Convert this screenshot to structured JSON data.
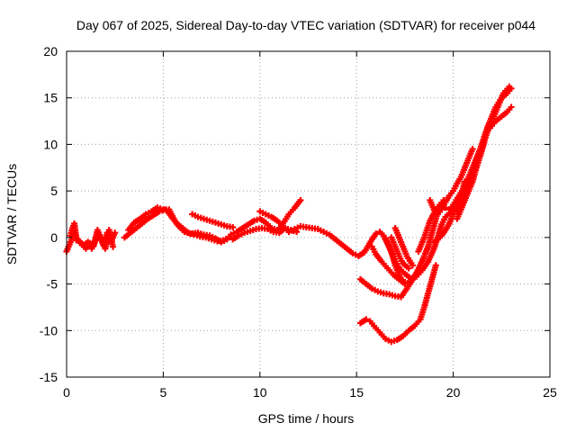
{
  "chart_data": {
    "type": "scatter",
    "title": "Day 067 of 2025, Sidereal Day-to-day VTEC variation (SDTVAR) for receiver p044",
    "xlabel": "GPS time / hours",
    "ylabel": "SDTVAR / TECUs",
    "xlim": [
      0,
      25
    ],
    "ylim": [
      -15,
      20
    ],
    "x_ticks": [
      0,
      5,
      10,
      15,
      20,
      25
    ],
    "y_ticks": [
      -15,
      -10,
      -5,
      0,
      5,
      10,
      15,
      20
    ],
    "grid": true,
    "marker": "plus",
    "color": "#ff0000",
    "series": [
      {
        "points": [
          [
            0,
            -1.5
          ],
          [
            0.2,
            -0.5
          ],
          [
            0.4,
            0.5
          ],
          [
            0.5,
            -0.3
          ],
          [
            0.7,
            -0.5
          ],
          [
            0.9,
            -0.8
          ],
          [
            1.1,
            -0.5
          ],
          [
            1.3,
            -1.2
          ],
          [
            1.5,
            -0.3
          ],
          [
            1.7,
            0.2
          ],
          [
            1.9,
            -0.8
          ],
          [
            2.1,
            0.5
          ],
          [
            2.3,
            -0.5
          ],
          [
            2.5,
            0.5
          ]
        ]
      },
      {
        "points": [
          [
            0.2,
            0.2
          ],
          [
            0.3,
            1.0
          ],
          [
            0.4,
            1.5
          ],
          [
            0.5,
            0.0
          ],
          [
            0.8,
            -0.8
          ],
          [
            1.0,
            -1.2
          ],
          [
            1.2,
            -0.6
          ],
          [
            1.4,
            -0.9
          ],
          [
            1.6,
            0.8
          ],
          [
            1.8,
            -0.2
          ],
          [
            2.0,
            -1.2
          ],
          [
            2.2,
            0.8
          ],
          [
            2.4,
            -1.0
          ]
        ]
      },
      {
        "points": [
          [
            3.0,
            0.0
          ],
          [
            3.3,
            0.5
          ],
          [
            3.6,
            1.0
          ],
          [
            3.9,
            1.5
          ],
          [
            4.2,
            2.0
          ],
          [
            4.5,
            2.4
          ],
          [
            4.8,
            2.8
          ],
          [
            5.1,
            3.0
          ],
          [
            5.3,
            2.6
          ],
          [
            5.5,
            2.0
          ],
          [
            5.7,
            1.5
          ],
          [
            6.0,
            1.0
          ],
          [
            6.3,
            0.5
          ],
          [
            6.6,
            0.3
          ],
          [
            6.9,
            0.1
          ],
          [
            7.2,
            0.0
          ],
          [
            7.5,
            -0.2
          ],
          [
            7.8,
            -0.4
          ],
          [
            8.1,
            -0.3
          ],
          [
            8.4,
            0.0
          ]
        ]
      },
      {
        "points": [
          [
            3.2,
            0.8
          ],
          [
            3.5,
            1.6
          ],
          [
            3.8,
            2.0
          ],
          [
            4.1,
            2.5
          ],
          [
            4.4,
            2.8
          ],
          [
            4.7,
            3.2
          ],
          [
            5.0,
            3.0
          ],
          [
            5.3,
            3.0
          ],
          [
            5.6,
            1.8
          ],
          [
            5.8,
            1.2
          ],
          [
            6.1,
            0.6
          ],
          [
            6.4,
            0.4
          ],
          [
            6.8,
            0.5
          ],
          [
            7.1,
            0.3
          ],
          [
            7.4,
            0.2
          ],
          [
            7.7,
            -0.1
          ],
          [
            8.0,
            -0.5
          ],
          [
            8.3,
            -0.2
          ]
        ]
      },
      {
        "points": [
          [
            6.5,
            2.5
          ],
          [
            6.8,
            2.2
          ],
          [
            7.1,
            2.0
          ],
          [
            7.4,
            1.8
          ],
          [
            7.7,
            1.6
          ],
          [
            8.0,
            1.4
          ],
          [
            8.3,
            1.2
          ],
          [
            8.6,
            1.1
          ]
        ]
      },
      {
        "points": [
          [
            8.5,
            0.3
          ],
          [
            8.8,
            0.6
          ],
          [
            9.1,
            1.0
          ],
          [
            9.4,
            1.4
          ],
          [
            9.7,
            1.8
          ],
          [
            10.0,
            2.0
          ],
          [
            10.3,
            1.6
          ],
          [
            10.6,
            1.0
          ],
          [
            10.9,
            0.8
          ],
          [
            11.2,
            1.5
          ],
          [
            11.5,
            2.5
          ],
          [
            11.8,
            3.2
          ],
          [
            12.1,
            4.0
          ]
        ]
      },
      {
        "points": [
          [
            8.6,
            -0.2
          ],
          [
            8.9,
            0.2
          ],
          [
            9.2,
            0.5
          ],
          [
            9.5,
            0.7
          ],
          [
            9.8,
            0.9
          ],
          [
            10.1,
            1.0
          ],
          [
            10.4,
            0.9
          ],
          [
            10.7,
            0.6
          ],
          [
            11.0,
            0.5
          ],
          [
            11.3,
            1.0
          ],
          [
            11.6,
            0.8
          ],
          [
            11.9,
            0.6
          ]
        ]
      },
      {
        "points": [
          [
            10.0,
            2.8
          ],
          [
            10.3,
            2.5
          ],
          [
            10.6,
            2.2
          ],
          [
            10.9,
            1.8
          ],
          [
            11.2,
            1.2
          ],
          [
            11.5,
            0.6
          ],
          [
            11.8,
            0.9
          ],
          [
            12.1,
            1.2
          ],
          [
            12.4,
            1.1
          ],
          [
            12.7,
            1.0
          ],
          [
            13.0,
            0.9
          ],
          [
            13.3,
            0.6
          ],
          [
            13.6,
            0.3
          ],
          [
            13.9,
            -0.2
          ],
          [
            14.2,
            -0.7
          ],
          [
            14.5,
            -1.2
          ],
          [
            14.8,
            -1.7
          ],
          [
            15.1,
            -2.0
          ],
          [
            15.4,
            -1.6
          ],
          [
            15.6,
            -0.9
          ],
          [
            15.8,
            -0.2
          ],
          [
            16.0,
            0.4
          ],
          [
            16.2,
            0.6
          ],
          [
            16.4,
            0.2
          ],
          [
            16.6,
            -0.6
          ],
          [
            16.8,
            -1.6
          ],
          [
            17.0,
            -2.6
          ],
          [
            17.2,
            -3.3
          ],
          [
            17.5,
            -3.9
          ],
          [
            17.8,
            -4.4
          ],
          [
            18.1,
            -4.2
          ],
          [
            18.4,
            -3.5
          ],
          [
            18.7,
            -2.6
          ],
          [
            19.0,
            -1.2
          ],
          [
            19.2,
            0.0
          ],
          [
            19.4,
            1.4
          ],
          [
            19.6,
            2.2
          ],
          [
            19.8,
            2.6
          ],
          [
            20.0,
            3.0
          ],
          [
            20.2,
            2.9
          ],
          [
            20.4,
            3.4
          ],
          [
            20.6,
            4.4
          ],
          [
            20.8,
            5.7
          ],
          [
            21.0,
            7.0
          ],
          [
            21.2,
            8.3
          ],
          [
            21.4,
            9.5
          ],
          [
            21.6,
            10.8
          ],
          [
            21.8,
            12.0
          ],
          [
            22.0,
            13.0
          ],
          [
            22.2,
            14.0
          ],
          [
            22.5,
            15.0
          ],
          [
            22.8,
            15.5
          ],
          [
            23.0,
            16.0
          ]
        ]
      },
      {
        "points": [
          [
            15.8,
            -1.0
          ],
          [
            16.0,
            -1.8
          ],
          [
            16.3,
            -2.6
          ],
          [
            16.6,
            -3.3
          ],
          [
            16.9,
            -4.0
          ],
          [
            17.2,
            -4.5
          ],
          [
            17.5,
            -5.0
          ],
          [
            17.8,
            -4.8
          ],
          [
            18.1,
            -3.8
          ],
          [
            18.4,
            -2.5
          ],
          [
            18.7,
            -1.0
          ],
          [
            18.9,
            0.5
          ],
          [
            19.1,
            2.0
          ],
          [
            19.3,
            3.5
          ],
          [
            19.5,
            4.0
          ]
        ]
      },
      {
        "points": [
          [
            16.5,
            -0.2
          ],
          [
            16.8,
            -1.5
          ],
          [
            17.0,
            -3.0
          ],
          [
            17.3,
            -4.5
          ],
          [
            17.5,
            -4.8
          ]
        ]
      },
      {
        "points": [
          [
            16.8,
            0.0
          ],
          [
            17.0,
            -1.0
          ],
          [
            17.2,
            -2.0
          ],
          [
            17.4,
            -2.8
          ],
          [
            17.7,
            -3.3
          ]
        ]
      },
      {
        "points": [
          [
            15.2,
            -4.5
          ],
          [
            15.5,
            -5.0
          ],
          [
            15.8,
            -5.5
          ],
          [
            16.1,
            -5.8
          ],
          [
            16.4,
            -6.0
          ],
          [
            16.7,
            -6.1
          ],
          [
            17.0,
            -6.3
          ],
          [
            17.3,
            -6.4
          ],
          [
            17.6,
            -5.5
          ],
          [
            17.9,
            -4.5
          ],
          [
            18.2,
            -3.5
          ],
          [
            18.5,
            -2.0
          ],
          [
            18.7,
            -1.0
          ]
        ]
      },
      {
        "points": [
          [
            15.2,
            -9.2
          ],
          [
            15.5,
            -8.8
          ],
          [
            15.7,
            -9.0
          ],
          [
            15.9,
            -9.5
          ],
          [
            16.2,
            -10.2
          ],
          [
            16.5,
            -10.9
          ],
          [
            16.8,
            -11.2
          ],
          [
            17.1,
            -11.0
          ],
          [
            17.4,
            -10.6
          ],
          [
            17.7,
            -10.0
          ],
          [
            18.0,
            -9.5
          ],
          [
            18.3,
            -8.8
          ],
          [
            18.5,
            -7.5
          ],
          [
            18.7,
            -6.0
          ],
          [
            18.9,
            -4.5
          ],
          [
            19.1,
            -3.0
          ]
        ]
      },
      {
        "points": [
          [
            17.0,
            1.0
          ],
          [
            17.3,
            -0.5
          ],
          [
            17.6,
            -2.0
          ],
          [
            17.9,
            -3.0
          ]
        ]
      },
      {
        "points": [
          [
            18.2,
            -1.5
          ],
          [
            18.5,
            0.0
          ],
          [
            18.8,
            1.8
          ],
          [
            19.1,
            3.0
          ],
          [
            19.3,
            3.5
          ],
          [
            19.6,
            3.2
          ],
          [
            19.8,
            3.0
          ],
          [
            20.0,
            3.5
          ],
          [
            20.3,
            4.5
          ],
          [
            20.6,
            5.5
          ],
          [
            20.9,
            7.0
          ],
          [
            21.2,
            8.5
          ],
          [
            21.5,
            10.0
          ],
          [
            21.8,
            11.5
          ],
          [
            22.0,
            12.0
          ],
          [
            22.2,
            12.5
          ],
          [
            22.5,
            13.0
          ],
          [
            22.8,
            13.5
          ],
          [
            23.0,
            14.0
          ]
        ]
      },
      {
        "points": [
          [
            20.2,
            2.0
          ],
          [
            20.4,
            3.0
          ],
          [
            20.6,
            4.0
          ],
          [
            20.8,
            5.0
          ],
          [
            21.0,
            6.0
          ],
          [
            21.2,
            7.5
          ],
          [
            21.4,
            8.8
          ],
          [
            21.6,
            10.2
          ],
          [
            21.8,
            11.8
          ],
          [
            22.0,
            12.5
          ],
          [
            22.3,
            14.0
          ],
          [
            22.6,
            15.5
          ],
          [
            22.9,
            16.2
          ]
        ]
      },
      {
        "points": [
          [
            19.0,
            -0.5
          ],
          [
            19.2,
            -0.2
          ],
          [
            19.4,
            0.2
          ],
          [
            19.6,
            0.8
          ],
          [
            19.8,
            1.5
          ],
          [
            20.0,
            2.5
          ],
          [
            20.2,
            3.5
          ],
          [
            20.4,
            4.5
          ],
          [
            20.6,
            6.0
          ]
        ]
      },
      {
        "points": [
          [
            18.8,
            4.0
          ],
          [
            19.0,
            3.0
          ],
          [
            19.2,
            2.5
          ],
          [
            19.4,
            3.0
          ],
          [
            19.6,
            3.8
          ],
          [
            19.8,
            4.5
          ],
          [
            20.0,
            5.0
          ],
          [
            20.2,
            5.8
          ],
          [
            20.4,
            6.5
          ],
          [
            20.6,
            7.5
          ],
          [
            20.8,
            8.5
          ],
          [
            21.0,
            9.5
          ]
        ]
      }
    ]
  }
}
